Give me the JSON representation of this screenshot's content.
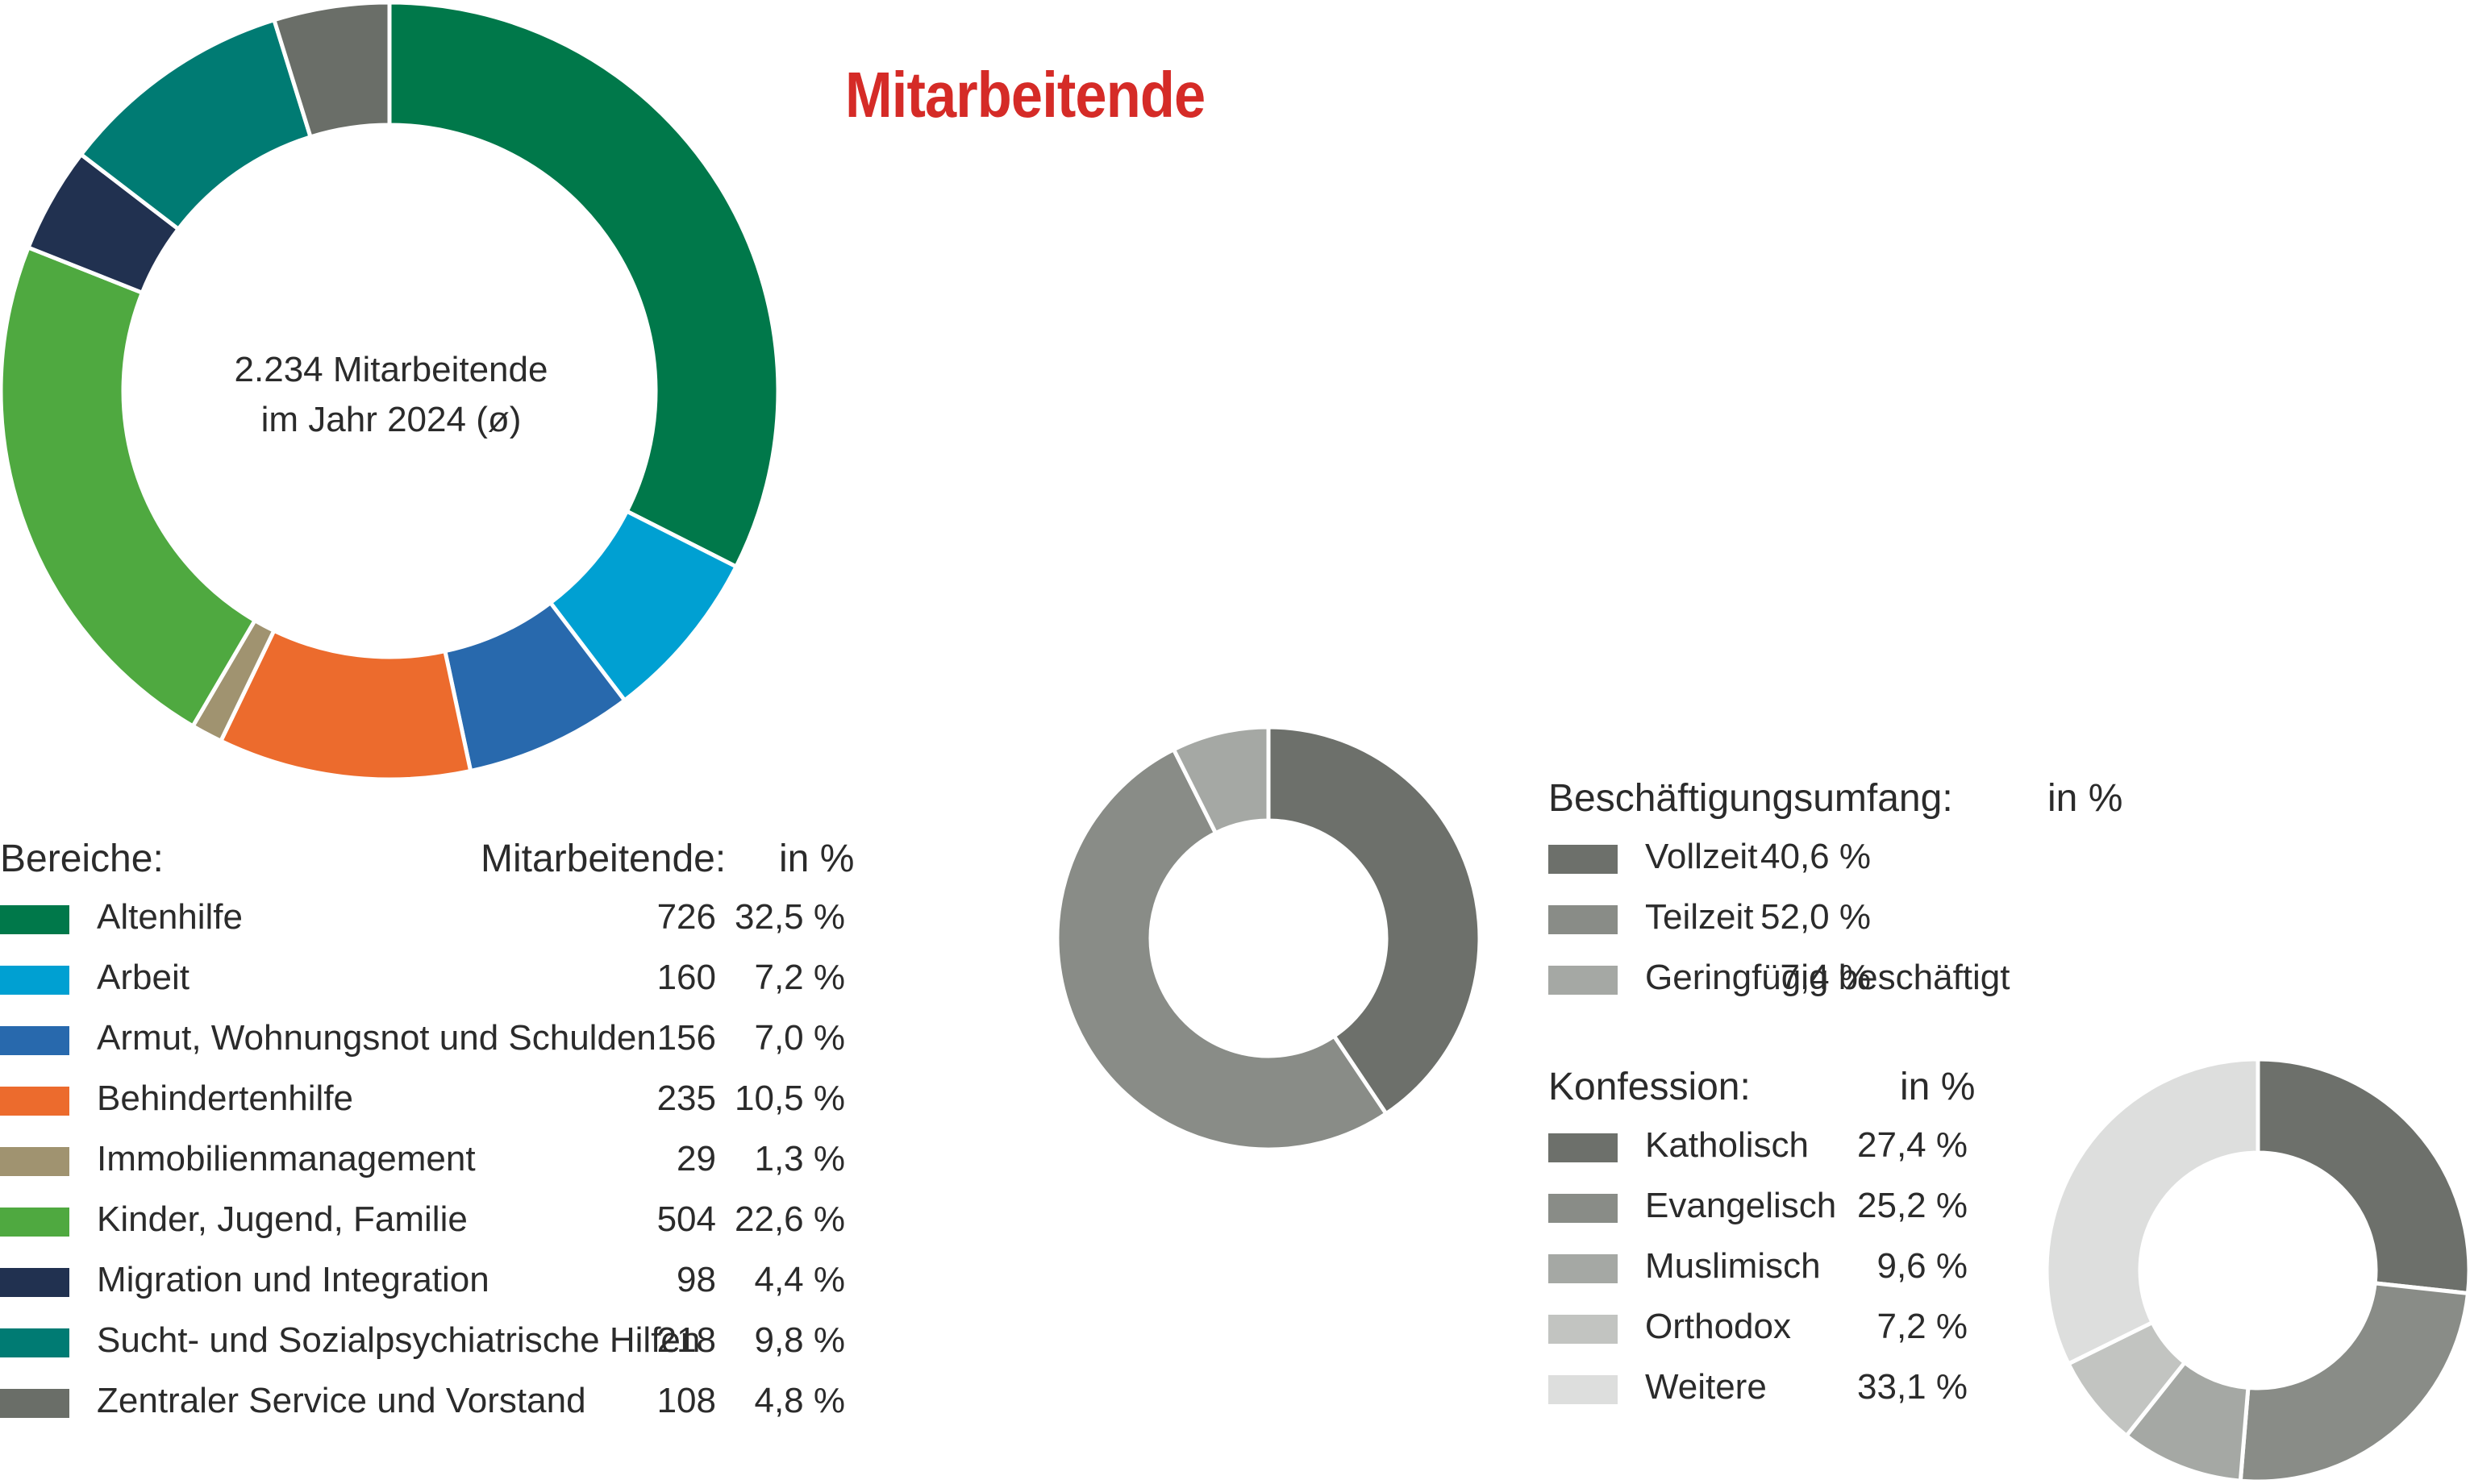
{
  "title": "Mitarbeitende",
  "center_label": {
    "line1": "2.234 Mitarbeitende",
    "line2": "im Jahr 2024 (ø)"
  },
  "bereiche": {
    "header_label": "Bereiche:",
    "header_count": "Mitarbeitende:",
    "header_pct": "in %"
  },
  "employment": {
    "header_label": "Beschäftigungsumfang:",
    "header_pct": "in %"
  },
  "konfession": {
    "header_label": "Konfession:",
    "header_pct": "in %"
  },
  "chart_data": [
    {
      "type": "pie",
      "variant": "donut",
      "categories": [
        "Altenhilfe",
        "Arbeit",
        "Armut, Wohnungsnot und Schulden",
        "Behindertenhilfe",
        "Immobilienmanagement",
        "Kinder, Jugend, Familie",
        "Migration und Integration",
        "Sucht- und Sozialpsychiatrische Hilfen",
        "Zentraler Service und Vorstand"
      ],
      "counts": [
        "726",
        "160",
        "156",
        "235",
        "29",
        "504",
        "98",
        "218",
        "108"
      ],
      "values": [
        32.5,
        7.2,
        7.0,
        10.5,
        1.3,
        22.6,
        4.4,
        9.8,
        4.8
      ],
      "labels": [
        "32,5 %",
        "7,2 %",
        "7,0 %",
        "10,5 %",
        "1,3 %",
        "22,6 %",
        "4,4 %",
        "9,8 %",
        "4,8 %"
      ],
      "colors": [
        "#00784a",
        "#00a0d2",
        "#2869ad",
        "#ec6b2d",
        "#a09370",
        "#4fa940",
        "#213150",
        "#007b73",
        "#6a6e68"
      ]
    },
    {
      "type": "pie",
      "variant": "donut",
      "categories": [
        "Vollzeit",
        "Teilzeit",
        "Geringfügig beschäftigt"
      ],
      "values": [
        40.6,
        52.0,
        7.4
      ],
      "labels": [
        "40,6 %",
        "52,0 %",
        "7,4 %"
      ],
      "colors": [
        "#6d706b",
        "#898c87",
        "#a5a8a4"
      ]
    },
    {
      "type": "pie",
      "variant": "donut",
      "categories": [
        "Katholisch",
        "Evangelisch",
        "Muslimisch",
        "Orthodox",
        "Weitere"
      ],
      "values": [
        27.4,
        25.2,
        9.6,
        7.2,
        33.1
      ],
      "labels": [
        "27,4 %",
        "25,2 %",
        "9,6 %",
        "7,2 %",
        "33,1 %"
      ],
      "colors": [
        "#6d706b",
        "#898c87",
        "#a5a8a4",
        "#c2c4c1",
        "#dddedd"
      ]
    }
  ]
}
